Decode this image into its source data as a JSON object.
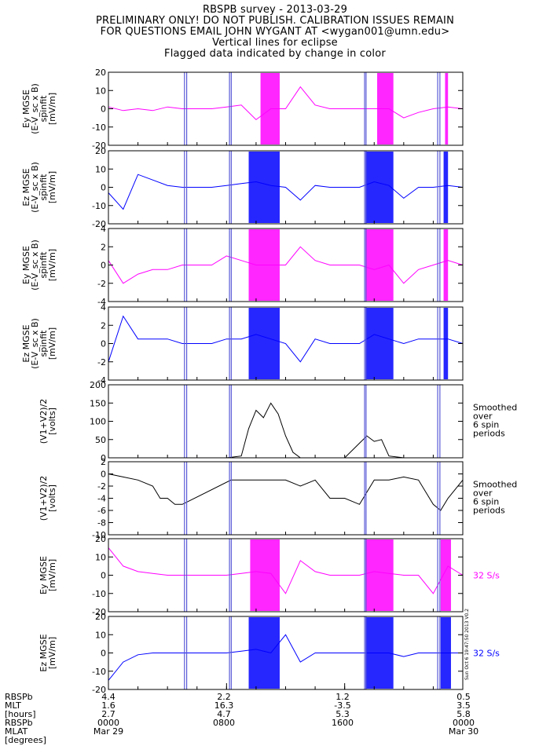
{
  "header": {
    "line1": "RBSPB survey - 2013-03-29",
    "line2": "PRELIMINARY ONLY! DO NOT PUBLISH. CALIBRATION ISSUES REMAIN",
    "line3": "FOR QUESTIONS EMAIL JOHN WYGANT AT <wygan001@umn.edu>",
    "line4": "Vertical lines for eclipse",
    "line5": "Flagged data indicated by change in color"
  },
  "colors": {
    "magenta": "#ff00ff",
    "blue": "#0000ff",
    "black": "#000000",
    "eclipse": "#5a5ad8"
  },
  "eclipse_lines_hours": [
    5.15,
    5.3,
    8.2,
    8.32,
    17.35,
    17.45,
    22.3,
    22.45
  ],
  "chart_data": [
    {
      "type": "line",
      "panel": "ey-mgse-spinfit-1",
      "ylabel": [
        "Ey MGSE",
        "(E-V_sc x B)",
        "spinfit",
        "[mV/m]"
      ],
      "ylim": [
        -20,
        20
      ],
      "yticks": [
        "20",
        "10",
        "0",
        "-10",
        "-20"
      ],
      "color": "#ff00ff",
      "x_hours": [
        0,
        1,
        2,
        3,
        4,
        5,
        6,
        7,
        8,
        9,
        10,
        11,
        12,
        13,
        14,
        15,
        16,
        17,
        18,
        19,
        20,
        21,
        22,
        23,
        24
      ],
      "values": [
        1,
        -1,
        0,
        -1,
        1,
        0,
        0,
        0,
        1,
        2,
        -6,
        0,
        0,
        12,
        2,
        0,
        0,
        0,
        0,
        0,
        -5,
        -2,
        0,
        1,
        0
      ],
      "flags_hours": [
        [
          10.3,
          11.6
        ],
        [
          18.2,
          19.3
        ],
        [
          22.8,
          23.0
        ]
      ]
    },
    {
      "type": "line",
      "panel": "ez-mgse-spinfit-1",
      "ylabel": [
        "Ez MGSE",
        "(E-V_sc x B)",
        "spinfit",
        "[mV/m]"
      ],
      "ylim": [
        -20,
        20
      ],
      "yticks": [
        "20",
        "10",
        "0",
        "-10",
        "-20"
      ],
      "color": "#0000ff",
      "x_hours": [
        0,
        1,
        2,
        3,
        4,
        5,
        6,
        7,
        8,
        9,
        10,
        11,
        12,
        13,
        14,
        15,
        16,
        17,
        18,
        19,
        20,
        21,
        22,
        23,
        24
      ],
      "values": [
        -3,
        -12,
        7,
        4,
        1,
        0,
        0,
        0,
        1,
        2,
        3,
        1,
        0,
        -7,
        1,
        0,
        0,
        0,
        3,
        1,
        -6,
        0,
        0,
        1,
        0
      ],
      "flags_hours": [
        [
          9.5,
          11.6
        ],
        [
          17.4,
          19.3
        ],
        [
          22.7,
          23.0
        ]
      ]
    },
    {
      "type": "line",
      "panel": "ey-mgse-spinfit-2",
      "ylabel": [
        "Ey MGSE",
        "(E-V_sc x B)",
        "spinfit",
        "[mV/m]"
      ],
      "ylim": [
        -4,
        4
      ],
      "yticks": [
        "4",
        "2",
        "0",
        "-2",
        "-4"
      ],
      "color": "#ff00ff",
      "x_hours": [
        0,
        1,
        2,
        3,
        4,
        5,
        6,
        7,
        8,
        9,
        10,
        11,
        12,
        13,
        14,
        15,
        16,
        17,
        18,
        19,
        20,
        21,
        22,
        23,
        24
      ],
      "values": [
        0.5,
        -2,
        -1,
        -0.5,
        -0.5,
        0,
        0,
        0,
        1,
        0.5,
        0,
        0,
        0,
        2,
        0.5,
        0,
        0,
        0,
        -0.5,
        0,
        -2,
        -0.5,
        0,
        0.5,
        0
      ],
      "flags_hours": [
        [
          9.5,
          11.6
        ],
        [
          17.4,
          19.3
        ],
        [
          22.7,
          23.0
        ]
      ]
    },
    {
      "type": "line",
      "panel": "ez-mgse-spinfit-2",
      "ylabel": [
        "Ez MGSE",
        "(E-V_sc x B)",
        "spinfit",
        "[mV/m]"
      ],
      "ylim": [
        -4,
        4
      ],
      "yticks": [
        "4",
        "2",
        "0",
        "-2",
        "-4"
      ],
      "color": "#0000ff",
      "x_hours": [
        0,
        1,
        2,
        3,
        4,
        5,
        6,
        7,
        8,
        9,
        10,
        11,
        12,
        13,
        14,
        15,
        16,
        17,
        18,
        19,
        20,
        21,
        22,
        23,
        24
      ],
      "values": [
        -2,
        3,
        0.5,
        0.5,
        0.5,
        0,
        0,
        0,
        0.5,
        0.5,
        1,
        0.5,
        0,
        -2,
        0.5,
        0,
        0,
        0,
        1,
        0.5,
        0,
        0.5,
        0.5,
        0.5,
        0
      ],
      "flags_hours": [
        [
          9.5,
          11.6
        ],
        [
          17.4,
          19.3
        ],
        [
          22.7,
          23.0
        ]
      ]
    },
    {
      "type": "line",
      "panel": "v1v2-smoothed",
      "ylabel": [
        "(V1+V2)/2",
        "[volts]"
      ],
      "ylim": [
        0,
        200
      ],
      "yticks": [
        "200",
        "150",
        "100",
        "50",
        "0"
      ],
      "color": "#000000",
      "x_hours": [
        0,
        2,
        4,
        6,
        8,
        9,
        9.5,
        10,
        10.5,
        11,
        11.5,
        12,
        12.5,
        13,
        14,
        16,
        17,
        17.5,
        18,
        18.5,
        19,
        20,
        22,
        24
      ],
      "values": [
        0,
        0,
        0,
        0,
        0,
        5,
        80,
        130,
        110,
        150,
        120,
        60,
        15,
        0,
        0,
        0,
        40,
        60,
        45,
        50,
        5,
        0,
        0,
        0
      ],
      "note": [
        "Smoothed",
        "over",
        "6 spin",
        "periods"
      ]
    },
    {
      "type": "line",
      "panel": "v1v2-zoom",
      "ylabel": [
        "(V1+V2)/2",
        "[volts]"
      ],
      "ylim": [
        -10,
        2
      ],
      "yticks": [
        "2",
        "0",
        "-2",
        "-4",
        "-6",
        "-8",
        "-10"
      ],
      "color": "#000000",
      "x_hours": [
        0,
        1,
        2,
        3,
        3.5,
        4,
        4.5,
        5,
        8.3,
        12,
        13,
        14,
        15,
        16,
        17,
        18,
        19,
        20,
        21,
        22,
        22.5,
        23,
        24
      ],
      "values": [
        0,
        -0.5,
        -1,
        -2,
        -4,
        -4,
        -5,
        -5,
        -1,
        -1,
        -2,
        -1,
        -4,
        -4,
        -5,
        -1,
        -1,
        -0.5,
        -1,
        -5,
        -6,
        -4,
        -1
      ],
      "note": [
        "Smoothed",
        "over",
        "6 spin",
        "periods"
      ]
    },
    {
      "type": "line",
      "panel": "ey-mgse-32ss",
      "ylabel": [
        "Ey MGSE",
        "[mV/m]"
      ],
      "ylim": [
        -20,
        20
      ],
      "yticks": [
        "20",
        "10",
        "0",
        "-10",
        "-20"
      ],
      "color": "#ff00ff",
      "x_hours": [
        0,
        1,
        2,
        3,
        4,
        5,
        6,
        7,
        8,
        9,
        10,
        11,
        12,
        13,
        14,
        15,
        16,
        17,
        18,
        19,
        20,
        21,
        22,
        23,
        24
      ],
      "values": [
        15,
        5,
        2,
        1,
        0,
        0,
        0,
        0,
        0,
        1,
        2,
        1,
        -10,
        8,
        2,
        0,
        0,
        0,
        2,
        1,
        0,
        0,
        -10,
        5,
        0
      ],
      "flags_hours": [
        [
          9.6,
          11.6
        ],
        [
          17.4,
          19.3
        ],
        [
          22.5,
          23.2
        ]
      ],
      "note": "32 S/s"
    },
    {
      "type": "line",
      "panel": "ez-mgse-32ss",
      "ylabel": [
        "Ez MGSE",
        "[mV/m]"
      ],
      "ylim": [
        -20,
        20
      ],
      "yticks": [
        "20",
        "10",
        "0",
        "-10",
        "-20"
      ],
      "color": "#0000ff",
      "x_hours": [
        0,
        1,
        2,
        3,
        4,
        5,
        6,
        7,
        8,
        9,
        10,
        11,
        12,
        13,
        14,
        15,
        16,
        17,
        18,
        19,
        20,
        21,
        22,
        23,
        24
      ],
      "values": [
        -15,
        -5,
        -1,
        0,
        0,
        0,
        0,
        0,
        0,
        1,
        2,
        0,
        10,
        -5,
        0,
        0,
        0,
        0,
        0,
        0,
        -2,
        0,
        0,
        0,
        0
      ],
      "flags_hours": [
        [
          9.5,
          11.6
        ],
        [
          17.4,
          19.3
        ],
        [
          22.5,
          23.2
        ]
      ],
      "note": "32 S/s"
    }
  ],
  "footer": {
    "row_labels": [
      "RBSPb",
      "MLT",
      "[hours]",
      "RBSPb",
      "MLAT",
      "[degrees]"
    ],
    "columns": [
      {
        "rbspb": "4.4",
        "mlt": "1.6",
        "hours": "2.7",
        "time": "0000",
        "date": "Mar 29"
      },
      {
        "rbspb": "2.2",
        "mlt": "16.3",
        "hours": "4.7",
        "time": "0800",
        "date": ""
      },
      {
        "rbspb": "1.2",
        "mlt": "-3.5",
        "hours": "5.3",
        "time": "1600",
        "date": ""
      },
      {
        "rbspb": "0.5",
        "mlt": "3.5",
        "hours": "5.8",
        "time": "0000",
        "date": "Mar 30"
      }
    ],
    "stamp": "Sun Oct 6 19:47:50 2013 V0.2"
  }
}
